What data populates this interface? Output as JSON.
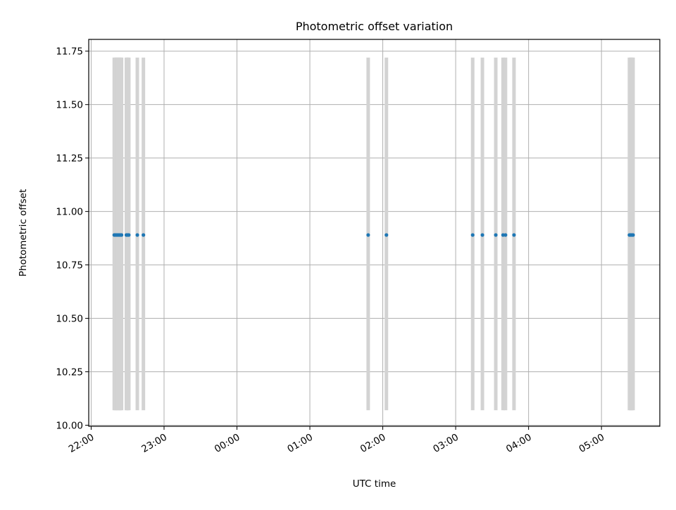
{
  "chart_data": {
    "type": "scatter",
    "title": "Photometric offset variation",
    "xlabel": "UTC time",
    "ylabel": "Photometric offset",
    "x_ticks": [
      "22:00",
      "23:00",
      "00:00",
      "01:00",
      "02:00",
      "03:00",
      "04:00",
      "05:00"
    ],
    "y_ticks": [
      "10.00",
      "10.25",
      "10.50",
      "10.75",
      "11.00",
      "11.25",
      "11.50",
      "11.75"
    ],
    "xlim": [
      "21:58",
      "05:48"
    ],
    "ylim": [
      9.995,
      11.805
    ],
    "grid": true,
    "colors": {
      "points": "#1f77b4",
      "bands": "#d3d3d3",
      "grid": "#b0b0b0"
    },
    "band_range": [
      10.07,
      11.72
    ],
    "observation_bands": [
      "22:19",
      "22:20",
      "22:21",
      "22:22",
      "22:23",
      "22:24",
      "22:25",
      "22:29",
      "22:30",
      "22:31",
      "22:38",
      "22:43",
      "01:48",
      "02:03",
      "03:14",
      "03:22",
      "03:33",
      "03:39",
      "03:41",
      "03:48",
      "05:23",
      "05:24",
      "05:25",
      "05:26"
    ],
    "series": [
      {
        "x": [
          "22:19",
          "22:20",
          "22:21",
          "22:22",
          "22:23",
          "22:24",
          "22:25",
          "22:29",
          "22:30",
          "22:31",
          "22:38",
          "22:43",
          "01:48",
          "02:03",
          "03:14",
          "03:22",
          "03:33",
          "03:39",
          "03:41",
          "03:48",
          "05:23",
          "05:24",
          "05:25",
          "05:26"
        ],
        "y": [
          10.89,
          10.89,
          10.89,
          10.89,
          10.89,
          10.89,
          10.89,
          10.89,
          10.89,
          10.89,
          10.89,
          10.89,
          10.89,
          10.89,
          10.89,
          10.89,
          10.89,
          10.89,
          10.89,
          10.89,
          10.89,
          10.89,
          10.89,
          10.89
        ]
      }
    ]
  }
}
